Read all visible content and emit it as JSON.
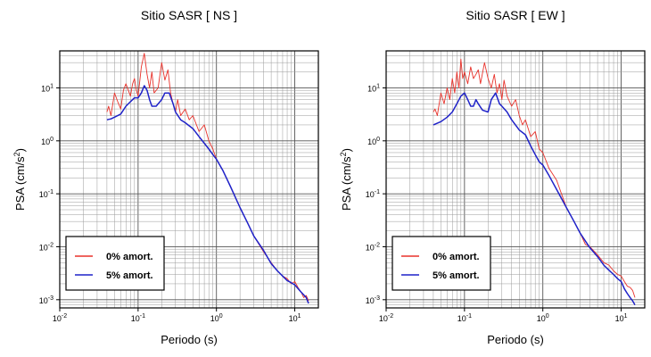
{
  "chart_data": [
    {
      "type": "line",
      "title": "Sitio SASR [ NS ]",
      "xlabel": "Periodo (s)",
      "ylabel": {
        "main": "PSA (cm/s",
        "sup": "2",
        "tail": ")"
      },
      "x_scale": "log",
      "y_scale": "log",
      "xlim": [
        0.01,
        20
      ],
      "ylim": [
        0.0007,
        50
      ],
      "x_ticks": [
        {
          "value": 0.01,
          "base": "10",
          "exp": "-2"
        },
        {
          "value": 0.1,
          "base": "10",
          "exp": "-1"
        },
        {
          "value": 1,
          "base": "10",
          "exp": "0"
        },
        {
          "value": 10,
          "base": "10",
          "exp": "1"
        }
      ],
      "y_ticks": [
        {
          "value": 0.001,
          "base": "10",
          "exp": "-3"
        },
        {
          "value": 0.01,
          "base": "10",
          "exp": "-2"
        },
        {
          "value": 0.1,
          "base": "10",
          "exp": "-1"
        },
        {
          "value": 1,
          "base": "10",
          "exp": "0"
        },
        {
          "value": 10,
          "base": "10",
          "exp": "1"
        }
      ],
      "grid": true,
      "legend_position": "bottom-left",
      "series": [
        {
          "name": "0% amort.",
          "color": "#e8322b",
          "points": [
            [
              0.04,
              3.5
            ],
            [
              0.042,
              4.5
            ],
            [
              0.045,
              3.0
            ],
            [
              0.05,
              8.0
            ],
            [
              0.055,
              5.5
            ],
            [
              0.06,
              4.0
            ],
            [
              0.065,
              9.0
            ],
            [
              0.07,
              12.0
            ],
            [
              0.075,
              9.0
            ],
            [
              0.08,
              7.0
            ],
            [
              0.085,
              12.0
            ],
            [
              0.09,
              15.0
            ],
            [
              0.095,
              9.0
            ],
            [
              0.1,
              7.0
            ],
            [
              0.11,
              25.0
            ],
            [
              0.12,
              45.0
            ],
            [
              0.13,
              18.0
            ],
            [
              0.14,
              10.0
            ],
            [
              0.15,
              20.0
            ],
            [
              0.16,
              8.0
            ],
            [
              0.18,
              10.0
            ],
            [
              0.2,
              30.0
            ],
            [
              0.22,
              14.0
            ],
            [
              0.24,
              22.0
            ],
            [
              0.26,
              8.0
            ],
            [
              0.28,
              5.0
            ],
            [
              0.3,
              3.5
            ],
            [
              0.32,
              6.0
            ],
            [
              0.35,
              3.0
            ],
            [
              0.4,
              4.0
            ],
            [
              0.45,
              2.5
            ],
            [
              0.5,
              3.0
            ],
            [
              0.6,
              1.5
            ],
            [
              0.7,
              2.0
            ],
            [
              0.8,
              1.0
            ],
            [
              0.9,
              0.7
            ],
            [
              1,
              0.45
            ],
            [
              1.2,
              0.28
            ],
            [
              1.5,
              0.14
            ],
            [
              2,
              0.055
            ],
            [
              2.5,
              0.028
            ],
            [
              3,
              0.016
            ],
            [
              3.5,
              0.011
            ],
            [
              4,
              0.008
            ],
            [
              5,
              0.005
            ],
            [
              6,
              0.0035
            ],
            [
              7,
              0.0028
            ],
            [
              8,
              0.0025
            ],
            [
              9,
              0.002
            ],
            [
              10,
              0.0022
            ],
            [
              11,
              0.0017
            ],
            [
              12,
              0.0014
            ],
            [
              13,
              0.0011
            ],
            [
              14,
              0.0012
            ],
            [
              15,
              0.00095
            ]
          ]
        },
        {
          "name": "5% amort.",
          "color": "#1f22c8",
          "points": [
            [
              0.04,
              2.5
            ],
            [
              0.045,
              2.6
            ],
            [
              0.05,
              2.8
            ],
            [
              0.06,
              3.2
            ],
            [
              0.07,
              4.5
            ],
            [
              0.08,
              5.5
            ],
            [
              0.09,
              6.5
            ],
            [
              0.1,
              6.5
            ],
            [
              0.11,
              8.0
            ],
            [
              0.12,
              11.0
            ],
            [
              0.13,
              9.0
            ],
            [
              0.14,
              6.0
            ],
            [
              0.15,
              4.5
            ],
            [
              0.17,
              4.5
            ],
            [
              0.2,
              6.0
            ],
            [
              0.22,
              8.0
            ],
            [
              0.25,
              8.0
            ],
            [
              0.28,
              5.0
            ],
            [
              0.3,
              3.5
            ],
            [
              0.35,
              2.5
            ],
            [
              0.4,
              2.2
            ],
            [
              0.5,
              1.7
            ],
            [
              0.6,
              1.2
            ],
            [
              0.7,
              0.9
            ],
            [
              0.8,
              0.7
            ],
            [
              0.9,
              0.55
            ],
            [
              1,
              0.45
            ],
            [
              1.2,
              0.28
            ],
            [
              1.5,
              0.14
            ],
            [
              2,
              0.055
            ],
            [
              2.5,
              0.028
            ],
            [
              3,
              0.016
            ],
            [
              4,
              0.0085
            ],
            [
              5,
              0.0048
            ],
            [
              6,
              0.0035
            ],
            [
              7,
              0.0028
            ],
            [
              8,
              0.0023
            ],
            [
              9,
              0.0021
            ],
            [
              10,
              0.0019
            ],
            [
              12,
              0.0014
            ],
            [
              14,
              0.0011
            ],
            [
              15,
              0.00085
            ]
          ]
        }
      ]
    },
    {
      "type": "line",
      "title": "Sitio SASR [ EW ]",
      "xlabel": "Periodo (s)",
      "ylabel": {
        "main": "PSA (cm/s",
        "sup": "2",
        "tail": ")"
      },
      "x_scale": "log",
      "y_scale": "log",
      "xlim": [
        0.01,
        20
      ],
      "ylim": [
        0.0007,
        50
      ],
      "x_ticks": [
        {
          "value": 0.01,
          "base": "10",
          "exp": "-2"
        },
        {
          "value": 0.1,
          "base": "10",
          "exp": "-1"
        },
        {
          "value": 1,
          "base": "10",
          "exp": "0"
        },
        {
          "value": 10,
          "base": "10",
          "exp": "1"
        }
      ],
      "y_ticks": [
        {
          "value": 0.001,
          "base": "10",
          "exp": "-3"
        },
        {
          "value": 0.01,
          "base": "10",
          "exp": "-2"
        },
        {
          "value": 0.1,
          "base": "10",
          "exp": "-1"
        },
        {
          "value": 1,
          "base": "10",
          "exp": "0"
        },
        {
          "value": 10,
          "base": "10",
          "exp": "1"
        }
      ],
      "grid": true,
      "legend_position": "bottom-left",
      "series": [
        {
          "name": "0% amort.",
          "color": "#e8322b",
          "points": [
            [
              0.04,
              3.5
            ],
            [
              0.042,
              4.0
            ],
            [
              0.045,
              3.0
            ],
            [
              0.05,
              8.0
            ],
            [
              0.055,
              5.0
            ],
            [
              0.06,
              10.0
            ],
            [
              0.065,
              6.0
            ],
            [
              0.07,
              15.0
            ],
            [
              0.075,
              8.0
            ],
            [
              0.08,
              20.0
            ],
            [
              0.085,
              10.0
            ],
            [
              0.09,
              35.0
            ],
            [
              0.095,
              15.0
            ],
            [
              0.1,
              20.0
            ],
            [
              0.11,
              12.0
            ],
            [
              0.12,
              25.0
            ],
            [
              0.13,
              15.0
            ],
            [
              0.14,
              18.0
            ],
            [
              0.15,
              22.0
            ],
            [
              0.16,
              12.0
            ],
            [
              0.18,
              30.0
            ],
            [
              0.2,
              15.0
            ],
            [
              0.22,
              10.0
            ],
            [
              0.24,
              18.0
            ],
            [
              0.26,
              8.0
            ],
            [
              0.28,
              12.0
            ],
            [
              0.3,
              6.0
            ],
            [
              0.32,
              14.0
            ],
            [
              0.35,
              7.0
            ],
            [
              0.4,
              4.5
            ],
            [
              0.45,
              6.0
            ],
            [
              0.5,
              3.0
            ],
            [
              0.55,
              2.0
            ],
            [
              0.6,
              2.5
            ],
            [
              0.7,
              1.2
            ],
            [
              0.8,
              1.5
            ],
            [
              0.9,
              0.7
            ],
            [
              1,
              0.6
            ],
            [
              1.2,
              0.3
            ],
            [
              1.5,
              0.18
            ],
            [
              2,
              0.055
            ],
            [
              2.5,
              0.03
            ],
            [
              3,
              0.018
            ],
            [
              3.5,
              0.011
            ],
            [
              4,
              0.01
            ],
            [
              5,
              0.007
            ],
            [
              6,
              0.005
            ],
            [
              7,
              0.0045
            ],
            [
              8,
              0.0035
            ],
            [
              9,
              0.003
            ],
            [
              10,
              0.0028
            ],
            [
              11,
              0.0022
            ],
            [
              12,
              0.0018
            ],
            [
              13,
              0.0017
            ],
            [
              14,
              0.0015
            ],
            [
              15,
              0.0011
            ]
          ]
        },
        {
          "name": "5% amort.",
          "color": "#1f22c8",
          "points": [
            [
              0.04,
              2.0
            ],
            [
              0.05,
              2.3
            ],
            [
              0.06,
              2.8
            ],
            [
              0.07,
              3.5
            ],
            [
              0.08,
              5.0
            ],
            [
              0.09,
              7.0
            ],
            [
              0.1,
              8.0
            ],
            [
              0.11,
              6.0
            ],
            [
              0.12,
              4.5
            ],
            [
              0.13,
              4.5
            ],
            [
              0.14,
              6.0
            ],
            [
              0.15,
              5.0
            ],
            [
              0.17,
              3.8
            ],
            [
              0.2,
              3.5
            ],
            [
              0.22,
              6.0
            ],
            [
              0.25,
              8.0
            ],
            [
              0.28,
              5.0
            ],
            [
              0.3,
              4.5
            ],
            [
              0.35,
              3.5
            ],
            [
              0.4,
              2.5
            ],
            [
              0.5,
              1.6
            ],
            [
              0.6,
              1.3
            ],
            [
              0.7,
              0.8
            ],
            [
              0.8,
              0.55
            ],
            [
              0.9,
              0.4
            ],
            [
              1,
              0.35
            ],
            [
              1.2,
              0.22
            ],
            [
              1.5,
              0.12
            ],
            [
              2,
              0.055
            ],
            [
              2.5,
              0.03
            ],
            [
              3,
              0.018
            ],
            [
              4,
              0.0095
            ],
            [
              5,
              0.0065
            ],
            [
              6,
              0.0045
            ],
            [
              7,
              0.0036
            ],
            [
              8,
              0.003
            ],
            [
              9,
              0.0025
            ],
            [
              10,
              0.0022
            ],
            [
              11,
              0.0016
            ],
            [
              12,
              0.0013
            ],
            [
              13,
              0.0011
            ],
            [
              14,
              0.00095
            ],
            [
              15,
              0.0008
            ]
          ]
        }
      ]
    }
  ]
}
